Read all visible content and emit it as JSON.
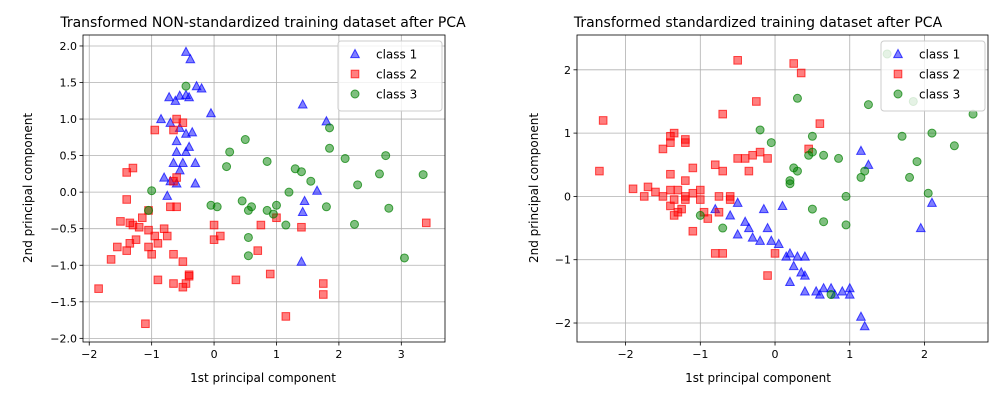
{
  "chart_data": [
    {
      "type": "scatter",
      "title": "Transformed NON-standardized training dataset after PCA",
      "xlabel": "1st principal component",
      "ylabel": "2nd principal component",
      "xlim": [
        -2.1,
        3.7
      ],
      "ylim": [
        -2.05,
        2.15
      ],
      "xticks": [
        -2,
        -1,
        0,
        1,
        2,
        3
      ],
      "xtick_labels": [
        "−2",
        "−1",
        "0",
        "1",
        "2",
        "3"
      ],
      "yticks": [
        -2.0,
        -1.5,
        -1.0,
        -0.5,
        0.0,
        0.5,
        1.0,
        1.5,
        2.0
      ],
      "ytick_labels": [
        "−2.0",
        "−1.5",
        "−1.0",
        "−0.5",
        "0.0",
        "0.5",
        "1.0",
        "1.5",
        "2.0"
      ],
      "grid": true,
      "legend_position": "top-right",
      "series": [
        {
          "name": "class 1",
          "marker": "triangle",
          "color": "#0000ff",
          "points": [
            [
              -0.45,
              1.92
            ],
            [
              -0.38,
              1.82
            ],
            [
              -0.28,
              1.45
            ],
            [
              -0.2,
              1.42
            ],
            [
              -0.55,
              1.32
            ],
            [
              -0.45,
              1.33
            ],
            [
              -0.4,
              1.3
            ],
            [
              -0.72,
              1.3
            ],
            [
              -0.62,
              1.25
            ],
            [
              -0.05,
              1.08
            ],
            [
              -0.85,
              1.0
            ],
            [
              -0.7,
              0.95
            ],
            [
              -0.55,
              0.88
            ],
            [
              -0.45,
              0.8
            ],
            [
              -0.35,
              0.82
            ],
            [
              -0.6,
              0.7
            ],
            [
              -0.4,
              0.62
            ],
            [
              -0.45,
              0.55
            ],
            [
              -0.6,
              0.55
            ],
            [
              -0.5,
              0.4
            ],
            [
              -0.65,
              0.4
            ],
            [
              -0.55,
              0.3
            ],
            [
              -0.3,
              0.4
            ],
            [
              -0.8,
              0.2
            ],
            [
              -0.7,
              0.15
            ],
            [
              -0.6,
              0.12
            ],
            [
              -0.3,
              0.12
            ],
            [
              -0.75,
              -0.05
            ],
            [
              1.42,
              1.2
            ],
            [
              1.8,
              0.97
            ],
            [
              1.65,
              0.02
            ],
            [
              1.45,
              -0.12
            ],
            [
              1.42,
              -0.27
            ],
            [
              1.4,
              -0.95
            ]
          ]
        },
        {
          "name": "class 2",
          "marker": "square",
          "color": "#ff0000",
          "points": [
            [
              -0.6,
              1.0
            ],
            [
              -0.5,
              0.95
            ],
            [
              -0.95,
              0.85
            ],
            [
              -0.65,
              0.85
            ],
            [
              -1.3,
              0.33
            ],
            [
              -1.4,
              0.27
            ],
            [
              -0.6,
              0.2
            ],
            [
              -0.65,
              0.15
            ],
            [
              -1.4,
              -0.1
            ],
            [
              -1.05,
              -0.25
            ],
            [
              -0.7,
              -0.2
            ],
            [
              -0.6,
              -0.2
            ],
            [
              -1.15,
              -0.35
            ],
            [
              -1.5,
              -0.4
            ],
            [
              -1.35,
              -0.42
            ],
            [
              -1.3,
              -0.45
            ],
            [
              -1.2,
              -0.48
            ],
            [
              -1.05,
              -0.52
            ],
            [
              -0.8,
              -0.5
            ],
            [
              -0.75,
              -0.6
            ],
            [
              -0.95,
              -0.6
            ],
            [
              -1.25,
              -0.65
            ],
            [
              -1.35,
              -0.7
            ],
            [
              -0.9,
              -0.7
            ],
            [
              -1.05,
              -0.75
            ],
            [
              -1.55,
              -0.75
            ],
            [
              -1.4,
              -0.8
            ],
            [
              -1.0,
              -0.85
            ],
            [
              -1.65,
              -0.92
            ],
            [
              -0.65,
              -0.85
            ],
            [
              -0.5,
              -0.95
            ],
            [
              -0.4,
              -1.13
            ],
            [
              -0.4,
              -1.15
            ],
            [
              -0.9,
              -1.2
            ],
            [
              -0.65,
              -1.25
            ],
            [
              -0.45,
              -1.25
            ],
            [
              -0.5,
              -1.3
            ],
            [
              -1.85,
              -1.32
            ],
            [
              -1.1,
              -1.8
            ],
            [
              0.0,
              -0.45
            ],
            [
              0.0,
              -0.65
            ],
            [
              0.1,
              -0.6
            ],
            [
              0.75,
              -0.45
            ],
            [
              0.7,
              -0.8
            ],
            [
              0.35,
              -1.2
            ],
            [
              0.9,
              -1.12
            ],
            [
              1.0,
              -0.35
            ],
            [
              1.4,
              -0.48
            ],
            [
              1.75,
              -1.25
            ],
            [
              1.75,
              -1.4
            ],
            [
              1.15,
              -1.7
            ],
            [
              3.4,
              -0.42
            ]
          ]
        },
        {
          "name": "class 3",
          "marker": "circle",
          "color": "#008000",
          "points": [
            [
              -0.45,
              1.45
            ],
            [
              -1.0,
              0.02
            ],
            [
              -1.05,
              -0.25
            ],
            [
              -0.05,
              -0.18
            ],
            [
              0.05,
              -0.2
            ],
            [
              0.25,
              0.55
            ],
            [
              0.2,
              0.35
            ],
            [
              0.5,
              0.72
            ],
            [
              0.45,
              -0.12
            ],
            [
              0.55,
              -0.25
            ],
            [
              0.6,
              -0.2
            ],
            [
              0.55,
              -0.62
            ],
            [
              0.55,
              -0.87
            ],
            [
              0.85,
              0.42
            ],
            [
              0.85,
              -0.25
            ],
            [
              0.95,
              -0.3
            ],
            [
              1.0,
              -0.18
            ],
            [
              1.15,
              -0.45
            ],
            [
              1.2,
              0.0
            ],
            [
              1.3,
              0.32
            ],
            [
              1.4,
              0.28
            ],
            [
              1.55,
              0.15
            ],
            [
              1.8,
              -0.2
            ],
            [
              1.85,
              0.88
            ],
            [
              1.85,
              0.6
            ],
            [
              2.1,
              0.46
            ],
            [
              2.25,
              -0.44
            ],
            [
              2.3,
              0.1
            ],
            [
              2.65,
              0.25
            ],
            [
              2.75,
              0.5
            ],
            [
              2.8,
              -0.22
            ],
            [
              3.05,
              -0.9
            ],
            [
              3.35,
              0.24
            ]
          ]
        }
      ]
    },
    {
      "type": "scatter",
      "title": "Transformed standardized training dataset after PCA",
      "xlabel": "1st principal component",
      "ylabel": "2nd principal component",
      "xlim": [
        -2.65,
        2.85
      ],
      "ylim": [
        -2.3,
        2.55
      ],
      "xticks": [
        -2,
        -1,
        0,
        1,
        2
      ],
      "xtick_labels": [
        "−2",
        "−1",
        "0",
        "1",
        "2"
      ],
      "yticks": [
        -2,
        -1,
        0,
        1,
        2
      ],
      "ytick_labels": [
        "−2",
        "−1",
        "0",
        "1",
        "2"
      ],
      "grid": true,
      "legend_position": "top-right",
      "series": [
        {
          "name": "class 1",
          "marker": "triangle",
          "color": "#0000ff",
          "points": [
            [
              -0.8,
              -0.2
            ],
            [
              -0.5,
              -0.1
            ],
            [
              -0.6,
              -0.3
            ],
            [
              -0.4,
              -0.4
            ],
            [
              -0.15,
              -0.2
            ],
            [
              -0.1,
              -0.5
            ],
            [
              -0.35,
              -0.5
            ],
            [
              -0.5,
              -0.6
            ],
            [
              -0.3,
              -0.65
            ],
            [
              -0.2,
              -0.7
            ],
            [
              -0.05,
              -0.7
            ],
            [
              0.05,
              -0.75
            ],
            [
              0.15,
              -0.95
            ],
            [
              0.2,
              -0.9
            ],
            [
              0.3,
              -0.95
            ],
            [
              0.4,
              -0.95
            ],
            [
              0.25,
              -1.1
            ],
            [
              0.35,
              -1.2
            ],
            [
              0.4,
              -1.25
            ],
            [
              0.2,
              -1.35
            ],
            [
              0.4,
              -1.5
            ],
            [
              0.55,
              -1.5
            ],
            [
              0.65,
              -1.45
            ],
            [
              0.6,
              -1.55
            ],
            [
              0.75,
              -1.45
            ],
            [
              0.8,
              -1.55
            ],
            [
              0.9,
              -1.5
            ],
            [
              1.0,
              -1.45
            ],
            [
              1.0,
              -1.55
            ],
            [
              1.15,
              -1.9
            ],
            [
              1.2,
              -2.05
            ],
            [
              1.15,
              0.72
            ],
            [
              1.25,
              0.5
            ],
            [
              1.95,
              -0.5
            ],
            [
              2.1,
              -0.1
            ],
            [
              0.1,
              -0.15
            ]
          ]
        },
        {
          "name": "class 2",
          "marker": "square",
          "color": "#ff0000",
          "points": [
            [
              -2.35,
              0.4
            ],
            [
              -2.3,
              1.2
            ],
            [
              -1.9,
              0.12
            ],
            [
              -1.75,
              0.0
            ],
            [
              -1.7,
              0.15
            ],
            [
              -1.6,
              0.07
            ],
            [
              -1.5,
              0.75
            ],
            [
              -1.4,
              0.85
            ],
            [
              -1.4,
              0.95
            ],
            [
              -1.35,
              1.0
            ],
            [
              -1.2,
              0.9
            ],
            [
              -1.2,
              0.85
            ],
            [
              -1.5,
              0.0
            ],
            [
              -1.4,
              0.1
            ],
            [
              -1.3,
              0.1
            ],
            [
              -1.2,
              0.0
            ],
            [
              -1.1,
              0.05
            ],
            [
              -1.2,
              -0.05
            ],
            [
              -1.35,
              -0.05
            ],
            [
              -1.4,
              -0.15
            ],
            [
              -1.25,
              -0.2
            ],
            [
              -1.3,
              -0.25
            ],
            [
              -1.35,
              -0.3
            ],
            [
              -1.2,
              0.25
            ],
            [
              -1.1,
              0.45
            ],
            [
              -1.4,
              0.35
            ],
            [
              -1.0,
              0.1
            ],
            [
              -1.0,
              -0.05
            ],
            [
              -0.95,
              -0.25
            ],
            [
              -0.9,
              -0.35
            ],
            [
              -0.8,
              0.5
            ],
            [
              -0.7,
              0.4
            ],
            [
              -0.75,
              0.0
            ],
            [
              -0.6,
              0.0
            ],
            [
              -0.6,
              -0.05
            ],
            [
              -0.5,
              0.6
            ],
            [
              -0.4,
              0.6
            ],
            [
              -0.35,
              0.4
            ],
            [
              -0.3,
              0.65
            ],
            [
              -0.2,
              0.7
            ],
            [
              -0.1,
              0.6
            ],
            [
              -1.1,
              -0.55
            ],
            [
              -0.75,
              -0.25
            ],
            [
              -0.7,
              1.3
            ],
            [
              -0.5,
              2.15
            ],
            [
              -0.25,
              1.5
            ],
            [
              0.25,
              2.1
            ],
            [
              0.35,
              1.95
            ],
            [
              0.6,
              1.15
            ],
            [
              0.45,
              0.75
            ],
            [
              -0.8,
              -0.9
            ],
            [
              -0.7,
              -0.9
            ],
            [
              -0.1,
              -1.25
            ],
            [
              0.0,
              -0.9
            ]
          ]
        },
        {
          "name": "class 3",
          "marker": "circle",
          "color": "#008000",
          "points": [
            [
              -0.7,
              -0.5
            ],
            [
              -1.0,
              -0.3
            ],
            [
              -0.2,
              1.05
            ],
            [
              -0.05,
              0.85
            ],
            [
              0.2,
              0.25
            ],
            [
              0.2,
              0.2
            ],
            [
              0.25,
              0.45
            ],
            [
              0.3,
              0.4
            ],
            [
              0.3,
              1.55
            ],
            [
              0.45,
              0.65
            ],
            [
              0.5,
              0.95
            ],
            [
              0.5,
              0.7
            ],
            [
              0.65,
              0.65
            ],
            [
              0.85,
              0.6
            ],
            [
              0.65,
              -0.4
            ],
            [
              0.5,
              -0.2
            ],
            [
              0.75,
              -1.55
            ],
            [
              0.95,
              -0.45
            ],
            [
              0.95,
              0.0
            ],
            [
              1.15,
              0.3
            ],
            [
              1.2,
              0.4
            ],
            [
              1.25,
              1.45
            ],
            [
              1.5,
              2.25
            ],
            [
              1.7,
              0.95
            ],
            [
              1.8,
              0.3
            ],
            [
              1.85,
              1.5
            ],
            [
              1.9,
              0.55
            ],
            [
              2.05,
              0.05
            ],
            [
              2.1,
              1.0
            ],
            [
              2.4,
              0.8
            ],
            [
              2.65,
              1.3
            ]
          ]
        }
      ]
    }
  ]
}
